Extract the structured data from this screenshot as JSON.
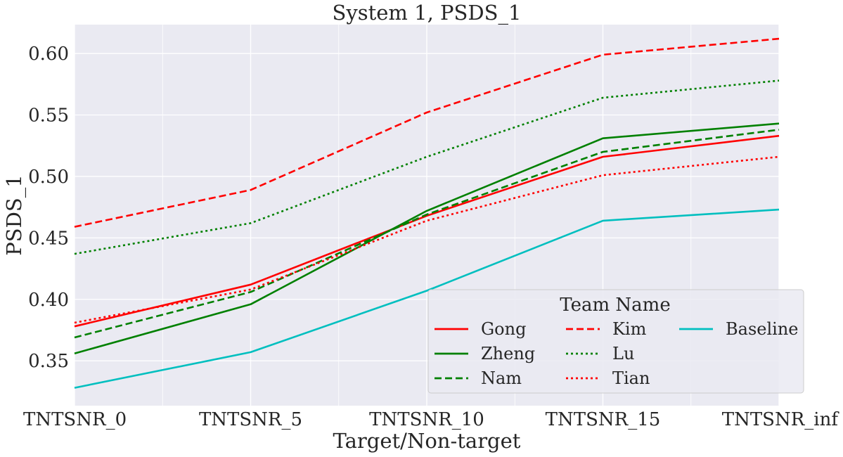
{
  "chart_data": {
    "type": "line",
    "title": "System 1, PSDS_1",
    "xlabel": "Target/Non-target",
    "ylabel": "PSDS_1",
    "categories": [
      "TNTSNR_0",
      "TNTSNR_5",
      "TNTSNR_10",
      "TNTSNR_15",
      "TNTSNR_inf"
    ],
    "ylim": [
      0.3135,
      0.6235
    ],
    "yticks": [
      0.35,
      0.4,
      0.45,
      0.5,
      0.55,
      0.6
    ],
    "ytick_labels": [
      "0.35",
      "0.40",
      "0.45",
      "0.50",
      "0.55",
      "0.60"
    ],
    "grid": true,
    "legend_title": "Team Name",
    "legend_position": "bottom-right",
    "series": [
      {
        "name": "Gong",
        "color": "#ff0000",
        "style": "solid",
        "values": [
          0.378,
          0.412,
          0.468,
          0.516,
          0.533
        ]
      },
      {
        "name": "Zheng",
        "color": "#008000",
        "style": "solid",
        "values": [
          0.356,
          0.396,
          0.472,
          0.531,
          0.543
        ]
      },
      {
        "name": "Nam",
        "color": "#008000",
        "style": "dashed",
        "values": [
          0.369,
          0.406,
          0.469,
          0.52,
          0.538
        ]
      },
      {
        "name": "Kim",
        "color": "#ff0000",
        "style": "dashed",
        "values": [
          0.459,
          0.489,
          0.552,
          0.599,
          0.612
        ]
      },
      {
        "name": "Lu",
        "color": "#008000",
        "style": "dotted",
        "values": [
          0.437,
          0.462,
          0.516,
          0.564,
          0.578
        ]
      },
      {
        "name": "Tian",
        "color": "#ff0000",
        "style": "dotted",
        "values": [
          0.381,
          0.408,
          0.464,
          0.501,
          0.516
        ]
      },
      {
        "name": "Baseline",
        "color": "#00bfbf",
        "style": "solid",
        "values": [
          0.328,
          0.357,
          0.407,
          0.464,
          0.473
        ]
      }
    ]
  }
}
